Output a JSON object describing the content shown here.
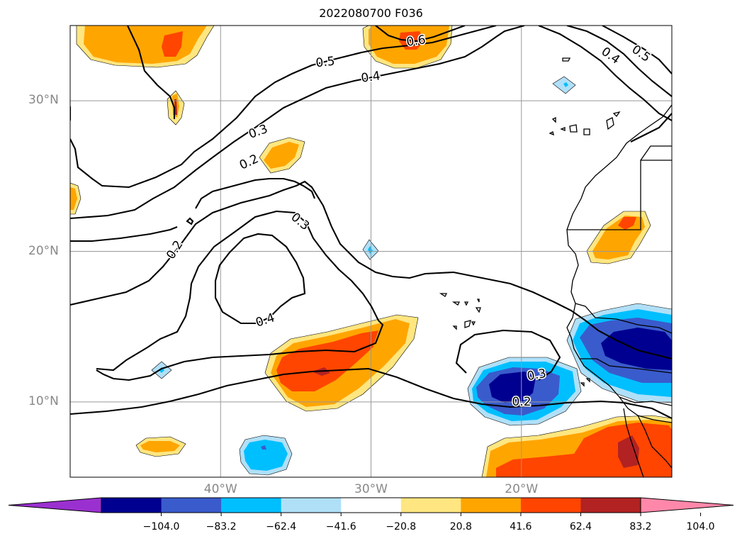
{
  "title": "2022080700 F036",
  "lat_labels": [
    {
      "text": "30°N",
      "lat": 30
    },
    {
      "text": "20°N",
      "lat": 20
    },
    {
      "text": "10°N",
      "lat": 10
    }
  ],
  "lon_labels": [
    {
      "text": "40°W",
      "lon": -40
    },
    {
      "text": "30°W",
      "lon": -30
    },
    {
      "text": "20°W",
      "lon": -20
    }
  ],
  "map_extent": {
    "lon_min": -50,
    "lon_max": -10,
    "lat_min": 5,
    "lat_max": 35
  },
  "contour_labels": [
    "0.6",
    "0.5",
    "0.4",
    "0.5",
    "0.4",
    "0.3",
    "0.2",
    "0.3",
    "0.2",
    "0.4",
    "0.3",
    "0.2"
  ],
  "colorbar": {
    "ticks": [
      "−104.0",
      "−83.2",
      "−62.4",
      "−41.6",
      "−20.8",
      "20.8",
      "41.6",
      "62.4",
      "83.2",
      "104.0"
    ],
    "colors": [
      "#9b30d0",
      "#000090",
      "#3a5bcc",
      "#00bfff",
      "#b0e0f8",
      "#ffffff",
      "#ffe680",
      "#ffa500",
      "#ff4500",
      "#b22222",
      "#ff88aa"
    ],
    "extend": "both"
  },
  "fill_colors": {
    "neg1": "#b0e0f8",
    "neg2": "#00bfff",
    "neg3": "#3a5bcc",
    "neg4": "#000090",
    "pos1": "#ffe680",
    "pos2": "#ffa500",
    "pos3": "#ff4500",
    "pos4": "#b22222"
  },
  "gridlines": true
}
